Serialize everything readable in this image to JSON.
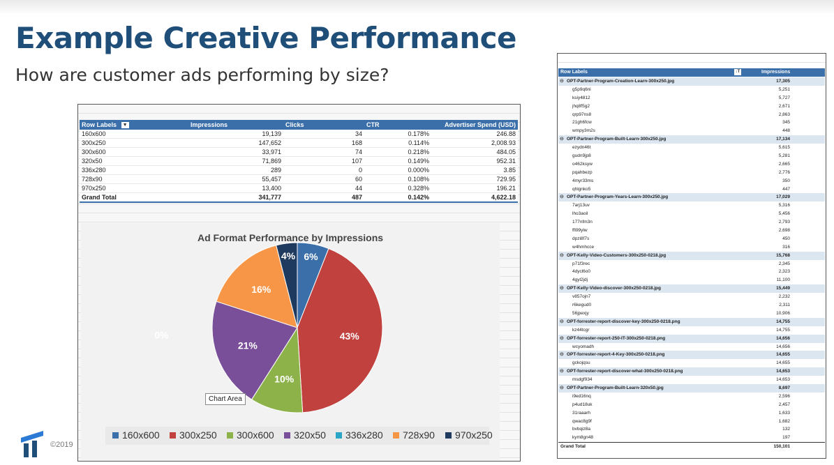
{
  "slide": {
    "title": "Example Creative Performance",
    "subtitle": "How are customer ads performing by size?",
    "copyright": "©2019"
  },
  "pivot_left": {
    "headers": [
      "Row Labels",
      "Impressions",
      "Clicks",
      "CTR",
      "Advertiser Spend (USD)"
    ],
    "rows": [
      [
        "160x600",
        "19,139",
        "34",
        "0.178%",
        "246.88"
      ],
      [
        "300x250",
        "147,652",
        "168",
        "0.114%",
        "2,008.93"
      ],
      [
        "300x600",
        "33,971",
        "74",
        "0.218%",
        "484.05"
      ],
      [
        "320x50",
        "71,869",
        "107",
        "0.149%",
        "952.31"
      ],
      [
        "336x280",
        "289",
        "0",
        "0.000%",
        "3.85"
      ],
      [
        "728x90",
        "55,457",
        "60",
        "0.108%",
        "729.95"
      ],
      [
        "970x250",
        "13,400",
        "44",
        "0.328%",
        "196.21"
      ]
    ],
    "total": [
      "Grand Total",
      "341,777",
      "487",
      "0.142%",
      "4,622.18"
    ]
  },
  "chart_data": {
    "type": "pie",
    "title": "Ad Format Performance by Impressions",
    "categories": [
      "160x600",
      "300x250",
      "300x600",
      "320x50",
      "336x280",
      "728x90",
      "970x250"
    ],
    "values": [
      6,
      43,
      10,
      21,
      0,
      16,
      4
    ],
    "value_labels": [
      "6%",
      "43%",
      "10%",
      "21%",
      "0%",
      "16%",
      "4%"
    ],
    "colors": [
      "#3b6faa",
      "#c0413d",
      "#8db24a",
      "#7a4f9a",
      "#2aa5c6",
      "#f79646",
      "#1f3a5f"
    ],
    "legend_position": "bottom"
  },
  "tooltip": "Chart Area",
  "pivot_right": {
    "headers": [
      "Row Labels",
      "Impressions"
    ],
    "groups": [
      {
        "name": "OPT-Partner-Program-Creation-Learn-300x250.jpg",
        "value": "17,305",
        "children": [
          [
            "g5p9q6ni",
            "5,251"
          ],
          [
            "ksiy4812",
            "5,727"
          ],
          [
            "jhq8f5g2",
            "2,671"
          ],
          [
            "qrp97ns8",
            "2,863"
          ],
          [
            "21gh6fcw",
            "345"
          ],
          [
            "wmpy3m2s",
            "448"
          ]
        ]
      },
      {
        "name": "OPT-Partner-Program-Built-Learn-300x250.jpg",
        "value": "17,134",
        "children": [
          [
            "ezydn46t",
            "5,615"
          ],
          [
            "gudn9jp8",
            "5,281"
          ],
          [
            "o462ksyw",
            "2,665"
          ],
          [
            "pqahbezp",
            "2,776"
          ],
          [
            "4myr33ms",
            "350"
          ],
          [
            "qhlgnko5",
            "447"
          ]
        ]
      },
      {
        "name": "OPT-Partner-Program-Years-Learn-300x250.jpg",
        "value": "17,029",
        "children": [
          [
            "7arj13uv",
            "5,316"
          ],
          [
            "lho3aoil",
            "5,456"
          ],
          [
            "177nfm3n",
            "2,793"
          ],
          [
            "ffi99ylw",
            "2,698"
          ],
          [
            "dpzi8f7s",
            "450"
          ],
          [
            "w4hmhcce",
            "316"
          ]
        ]
      },
      {
        "name": "OPT-Kelly-Video-Customers-300x250-0218.jpg",
        "value": "15,768",
        "children": [
          [
            "p71f3rec",
            "2,345"
          ],
          [
            "4dycl6o0",
            "2,323"
          ],
          [
            "4gyl2jdj",
            "11,100"
          ]
        ]
      },
      {
        "name": "OPT-Kelly-Video-discover-300x250-0218.jpg",
        "value": "15,449",
        "children": [
          [
            "v857ojn7",
            "2,232"
          ],
          [
            "r6kegud0",
            "2,311"
          ],
          [
            "56jpexjy",
            "10,906"
          ]
        ]
      },
      {
        "name": "OPT-forrester-report-discover-key-300x250-0218.png",
        "value": "14,755",
        "children": [
          [
            "kz44tcgr",
            "14,755"
          ]
        ]
      },
      {
        "name": "OPT-forrester-report-250-IT-300x250-0218.png",
        "value": "14,656",
        "children": [
          [
            "wcyomadh",
            "14,656"
          ]
        ]
      },
      {
        "name": "OPT-forrester-report-4-Key-300x250-0218.png",
        "value": "14,655",
        "children": [
          [
            "gckojqsu",
            "14,655"
          ]
        ]
      },
      {
        "name": "OPT-forrester-report-discover-what-300x250-0218.png",
        "value": "14,653",
        "children": [
          [
            "msdgf934",
            "14,653"
          ]
        ]
      },
      {
        "name": "OPT-Partner-Program-Built-Learn-320x50.jpg",
        "value": "8,697",
        "children": [
          [
            "i9ed16nq",
            "2,596"
          ],
          [
            "p4ud18uk",
            "2,457"
          ],
          [
            "31raaarh",
            "1,633"
          ],
          [
            "qwac8g9f",
            "1,682"
          ],
          [
            "bvbqiz8a",
            "132"
          ],
          [
            "kym8gn48",
            "197"
          ]
        ]
      }
    ],
    "total": [
      "Grand Total",
      "150,101"
    ]
  }
}
